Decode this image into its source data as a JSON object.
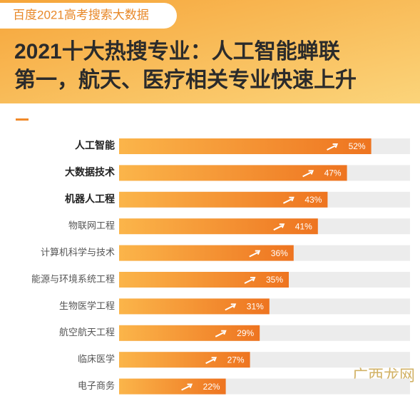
{
  "source_tag": "百度2021高考搜索大数据",
  "title_lines": [
    "2021十大热搜专业：人工智能蝉联",
    "第一，航天、医疗相关专业快速上升"
  ],
  "watermark": "广西龙网",
  "chart_data": {
    "type": "bar",
    "orientation": "horizontal",
    "categories": [
      "人工智能",
      "大数据技术",
      "机器人工程",
      "物联网工程",
      "计算机科学与技术",
      "能源与环境系统工程",
      "生物医学工程",
      "航空航天工程",
      "临床医学",
      "电子商务"
    ],
    "values": [
      52,
      47,
      43,
      41,
      36,
      35,
      31,
      29,
      27,
      22
    ],
    "value_labels": [
      "52%",
      "47%",
      "43%",
      "41%",
      "36%",
      "35%",
      "31%",
      "29%",
      "27%",
      "22%"
    ],
    "color": "#f08a2a",
    "track_color": "#ececec",
    "xlim": [
      0,
      60
    ]
  }
}
